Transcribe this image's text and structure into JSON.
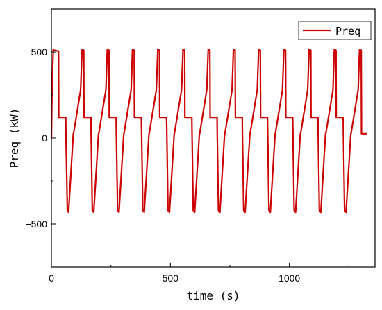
{
  "chart_data": {
    "type": "line",
    "title": "",
    "xlabel": "time (s)",
    "ylabel": "Preq (kW)",
    "xlim": [
      0,
      1360
    ],
    "ylim": [
      -750,
      750
    ],
    "xticks": [
      0,
      500,
      1000
    ],
    "yticks": [
      -500,
      0,
      500
    ],
    "grid": false,
    "legend": {
      "position": "top-right",
      "entries": [
        "Preq"
      ]
    },
    "series": [
      {
        "name": "Preq",
        "color": "#cc0000",
        "x": [
          0,
          3,
          8,
          12,
          30,
          31,
          60,
          61,
          67,
          72,
          92,
          93,
          123,
          129,
          136,
          137,
          166,
          167,
          172,
          178,
          198,
          199,
          229,
          235,
          242,
          243,
          272,
          273,
          278,
          284,
          304,
          305,
          335,
          341,
          348,
          349,
          378,
          379,
          384,
          390,
          410,
          411,
          441,
          447,
          454,
          455,
          484,
          485,
          490,
          496,
          516,
          517,
          547,
          553,
          560,
          561,
          590,
          591,
          596,
          602,
          622,
          623,
          653,
          659,
          666,
          667,
          696,
          697,
          702,
          708,
          728,
          729,
          759,
          765,
          772,
          773,
          802,
          803,
          808,
          814,
          834,
          835,
          865,
          871,
          878,
          879,
          908,
          909,
          914,
          920,
          940,
          941,
          971,
          977,
          984,
          985,
          1014,
          1015,
          1020,
          1026,
          1046,
          1047,
          1077,
          1083,
          1090,
          1091,
          1120,
          1121,
          1126,
          1132,
          1152,
          1153,
          1183,
          1189,
          1196,
          1197,
          1226,
          1227,
          1232,
          1238,
          1258,
          1259,
          1289,
          1295,
          1302,
          1303,
          1325
        ],
        "y": [
          0,
          300,
          515,
          510,
          505,
          120,
          120,
          25,
          -420,
          -432,
          25,
          25,
          280,
          515,
          510,
          120,
          120,
          25,
          -420,
          -432,
          25,
          25,
          280,
          515,
          510,
          120,
          120,
          25,
          -420,
          -432,
          25,
          25,
          280,
          515,
          510,
          120,
          120,
          25,
          -420,
          -432,
          25,
          25,
          280,
          515,
          510,
          120,
          120,
          25,
          -420,
          -432,
          25,
          25,
          280,
          515,
          510,
          120,
          120,
          25,
          -420,
          -432,
          25,
          25,
          280,
          515,
          510,
          120,
          120,
          25,
          -420,
          -432,
          25,
          25,
          280,
          515,
          510,
          120,
          120,
          25,
          -420,
          -432,
          25,
          25,
          280,
          515,
          510,
          120,
          120,
          25,
          -420,
          -432,
          25,
          25,
          280,
          515,
          510,
          120,
          120,
          25,
          -420,
          -432,
          25,
          25,
          280,
          515,
          510,
          120,
          120,
          25,
          -420,
          -432,
          25,
          25,
          280,
          515,
          510,
          120,
          120,
          25,
          -420,
          -432,
          25,
          25,
          280,
          515,
          510,
          25,
          25
        ]
      }
    ]
  }
}
